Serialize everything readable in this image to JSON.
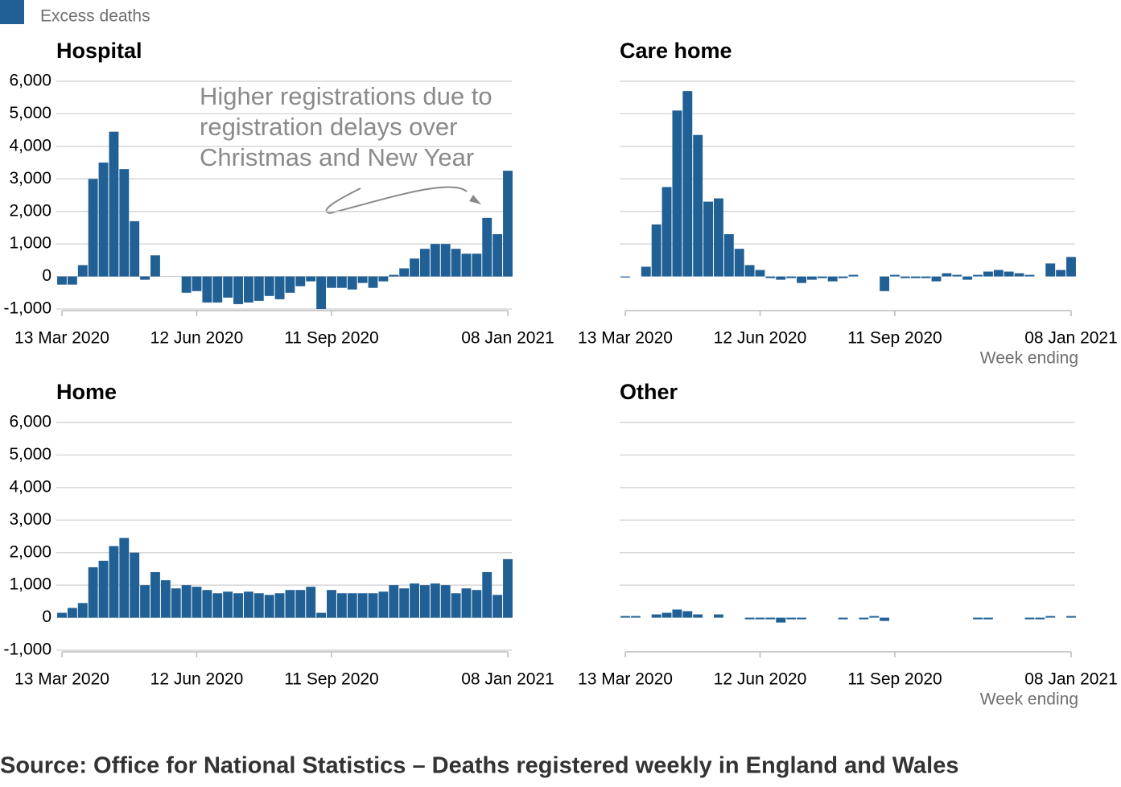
{
  "legend": {
    "name": "Excess deaths",
    "color": "#206095"
  },
  "annotation": [
    "Higher registrations due to",
    "registration delays over",
    "Christmas and New Year"
  ],
  "source": "Source: Office for National Statistics – Deaths registered weekly in England and Wales",
  "chart_data": [
    {
      "type": "bar",
      "title": "Hospital",
      "color": "#206095",
      "categories": [
        "13 Mar 2020",
        null,
        null,
        null,
        null,
        null,
        null,
        null,
        null,
        null,
        null,
        null,
        null,
        "12 Jun 2020",
        null,
        null,
        null,
        null,
        null,
        null,
        null,
        null,
        null,
        null,
        null,
        null,
        "11 Sep 2020",
        null,
        null,
        null,
        null,
        null,
        null,
        null,
        null,
        null,
        null,
        null,
        null,
        null,
        null,
        null,
        null,
        "08 Jan 2021"
      ],
      "values": [
        -250,
        -250,
        350,
        3000,
        3500,
        4450,
        3300,
        1700,
        -100,
        650,
        0,
        0,
        -500,
        -450,
        -800,
        -800,
        -650,
        -850,
        -800,
        -750,
        -600,
        -700,
        -500,
        -300,
        -150,
        -1000,
        -350,
        -350,
        -400,
        -200,
        -350,
        -150,
        50,
        250,
        550,
        850,
        1000,
        1000,
        850,
        700,
        700,
        1800,
        1300,
        3250
      ],
      "ylim": [
        -1000,
        6000
      ],
      "yticks": [
        {
          "value": -1000,
          "label": "-1,000"
        },
        0,
        {
          "value": 1000,
          "label": "1,000"
        },
        {
          "value": 2000,
          "label": "2,000"
        },
        {
          "value": 3000,
          "label": "3,000"
        },
        {
          "value": 4000,
          "label": "4,000"
        },
        {
          "value": 5000,
          "label": "5,000"
        },
        {
          "value": 6000,
          "label": "6,000"
        }
      ]
    },
    {
      "type": "bar",
      "title": "Care home",
      "color": "#206095",
      "xlabel": "Week ending",
      "categories": [
        "13 Mar 2020",
        null,
        null,
        null,
        null,
        null,
        null,
        null,
        null,
        null,
        null,
        null,
        null,
        "12 Jun 2020",
        null,
        null,
        null,
        null,
        null,
        null,
        null,
        null,
        null,
        null,
        null,
        null,
        "11 Sep 2020",
        null,
        null,
        null,
        null,
        null,
        null,
        null,
        null,
        null,
        null,
        null,
        null,
        null,
        null,
        null,
        null,
        "08 Jan 2021"
      ],
      "values": [
        -30,
        0,
        300,
        1600,
        2750,
        5100,
        5700,
        4350,
        2300,
        2400,
        1300,
        850,
        350,
        200,
        -50,
        -100,
        -50,
        -200,
        -100,
        -50,
        -150,
        -50,
        50,
        0,
        0,
        -450,
        50,
        -50,
        -50,
        -50,
        -150,
        100,
        50,
        -100,
        50,
        150,
        200,
        150,
        100,
        50,
        0,
        400,
        200,
        600
      ],
      "ylim": [
        -1000,
        6000
      ],
      "yticks": [
        1000,
        2000,
        3000,
        4000,
        5000,
        6000
      ]
    },
    {
      "type": "bar",
      "title": "Home",
      "color": "#206095",
      "categories": [
        "13 Mar 2020",
        null,
        null,
        null,
        null,
        null,
        null,
        null,
        null,
        null,
        null,
        null,
        null,
        "12 Jun 2020",
        null,
        null,
        null,
        null,
        null,
        null,
        null,
        null,
        null,
        null,
        null,
        null,
        "11 Sep 2020",
        null,
        null,
        null,
        null,
        null,
        null,
        null,
        null,
        null,
        null,
        null,
        null,
        null,
        null,
        null,
        null,
        "08 Jan 2021"
      ],
      "values": [
        150,
        300,
        450,
        1550,
        1750,
        2200,
        2450,
        2000,
        1000,
        1400,
        1150,
        900,
        1000,
        950,
        850,
        750,
        800,
        750,
        800,
        750,
        700,
        750,
        850,
        850,
        950,
        150,
        850,
        750,
        750,
        750,
        750,
        800,
        1000,
        900,
        1050,
        1000,
        1050,
        1000,
        750,
        900,
        850,
        1400,
        700,
        1800
      ],
      "ylim": [
        -1000,
        6000
      ],
      "yticks": [
        {
          "value": -1000,
          "label": "-1,000"
        },
        0,
        {
          "value": 1000,
          "label": "1,000"
        },
        {
          "value": 2000,
          "label": "2,000"
        },
        {
          "value": 3000,
          "label": "3,000"
        },
        {
          "value": 4000,
          "label": "4,000"
        },
        {
          "value": 5000,
          "label": "5,000"
        },
        {
          "value": 6000,
          "label": "6,000"
        }
      ]
    },
    {
      "type": "bar",
      "title": "Other",
      "color": "#206095",
      "xlabel": "Week ending",
      "categories": [
        "13 Mar 2020",
        null,
        null,
        null,
        null,
        null,
        null,
        null,
        null,
        null,
        null,
        null,
        null,
        "12 Jun 2020",
        null,
        null,
        null,
        null,
        null,
        null,
        null,
        null,
        null,
        null,
        null,
        null,
        "11 Sep 2020",
        null,
        null,
        null,
        null,
        null,
        null,
        null,
        null,
        null,
        null,
        null,
        null,
        null,
        null,
        null,
        null,
        "08 Jan 2021"
      ],
      "values": [
        50,
        50,
        0,
        100,
        150,
        250,
        200,
        100,
        0,
        100,
        0,
        0,
        -50,
        -50,
        -50,
        -150,
        -50,
        -50,
        0,
        0,
        0,
        -50,
        0,
        -50,
        50,
        -100,
        0,
        0,
        0,
        0,
        0,
        0,
        0,
        0,
        -50,
        -50,
        0,
        0,
        0,
        -50,
        -50,
        50,
        0,
        50
      ],
      "ylim": [
        -1000,
        6000
      ],
      "yticks": [
        1000,
        2000,
        3000,
        4000,
        5000,
        6000
      ]
    }
  ]
}
